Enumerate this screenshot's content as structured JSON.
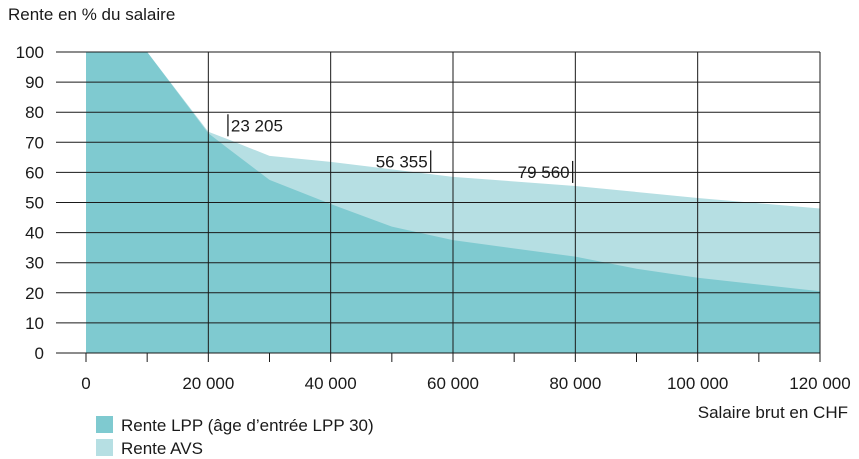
{
  "chart_data": {
    "type": "area",
    "ylabel": "Rente en % du salaire",
    "xlabel": "Salaire brut en CHF",
    "xlim": [
      0,
      120000
    ],
    "ylim": [
      0,
      100
    ],
    "x_ticks": [
      0,
      20000,
      40000,
      60000,
      80000,
      100000,
      120000
    ],
    "x_tick_labels": [
      "0",
      "20 000",
      "40 000",
      "60 000",
      "80 000",
      "100 000",
      "120 000"
    ],
    "y_ticks": [
      0,
      10,
      20,
      30,
      40,
      50,
      60,
      70,
      80,
      90,
      100
    ],
    "y_tick_labels": [
      "0",
      "10",
      "20",
      "30",
      "40",
      "50",
      "60",
      "70",
      "80",
      "90",
      "100"
    ],
    "grid": true,
    "legend_position": "bottom-left",
    "series": [
      {
        "name": "Rente LPP (âge d’entrée LPP 30)",
        "color": "#7fcad0",
        "x": [
          0,
          10000,
          20000,
          23205,
          30000,
          40000,
          50000,
          60000,
          80000,
          90000,
          100000,
          120000
        ],
        "y": [
          100,
          100,
          73,
          68,
          57.5,
          49.5,
          42,
          37.5,
          32,
          28,
          25,
          20.5
        ]
      },
      {
        "name": "Rente AVS",
        "color": "#b6dfe3",
        "x": [
          0,
          10000,
          20000,
          23205,
          30000,
          40000,
          50000,
          60000,
          80000,
          90000,
          100000,
          120000
        ],
        "y": [
          100,
          100,
          73.5,
          71,
          65.5,
          63.5,
          61,
          58.5,
          55.5,
          53.5,
          51.5,
          48
        ]
      }
    ],
    "annotations": [
      {
        "label": "23 205",
        "x": 23205,
        "y": 72,
        "side": "right"
      },
      {
        "label": "56 355",
        "x": 56355,
        "y": 60,
        "side": "left"
      },
      {
        "label": "79 560",
        "x": 79560,
        "y": 56.5,
        "side": "left"
      }
    ]
  }
}
